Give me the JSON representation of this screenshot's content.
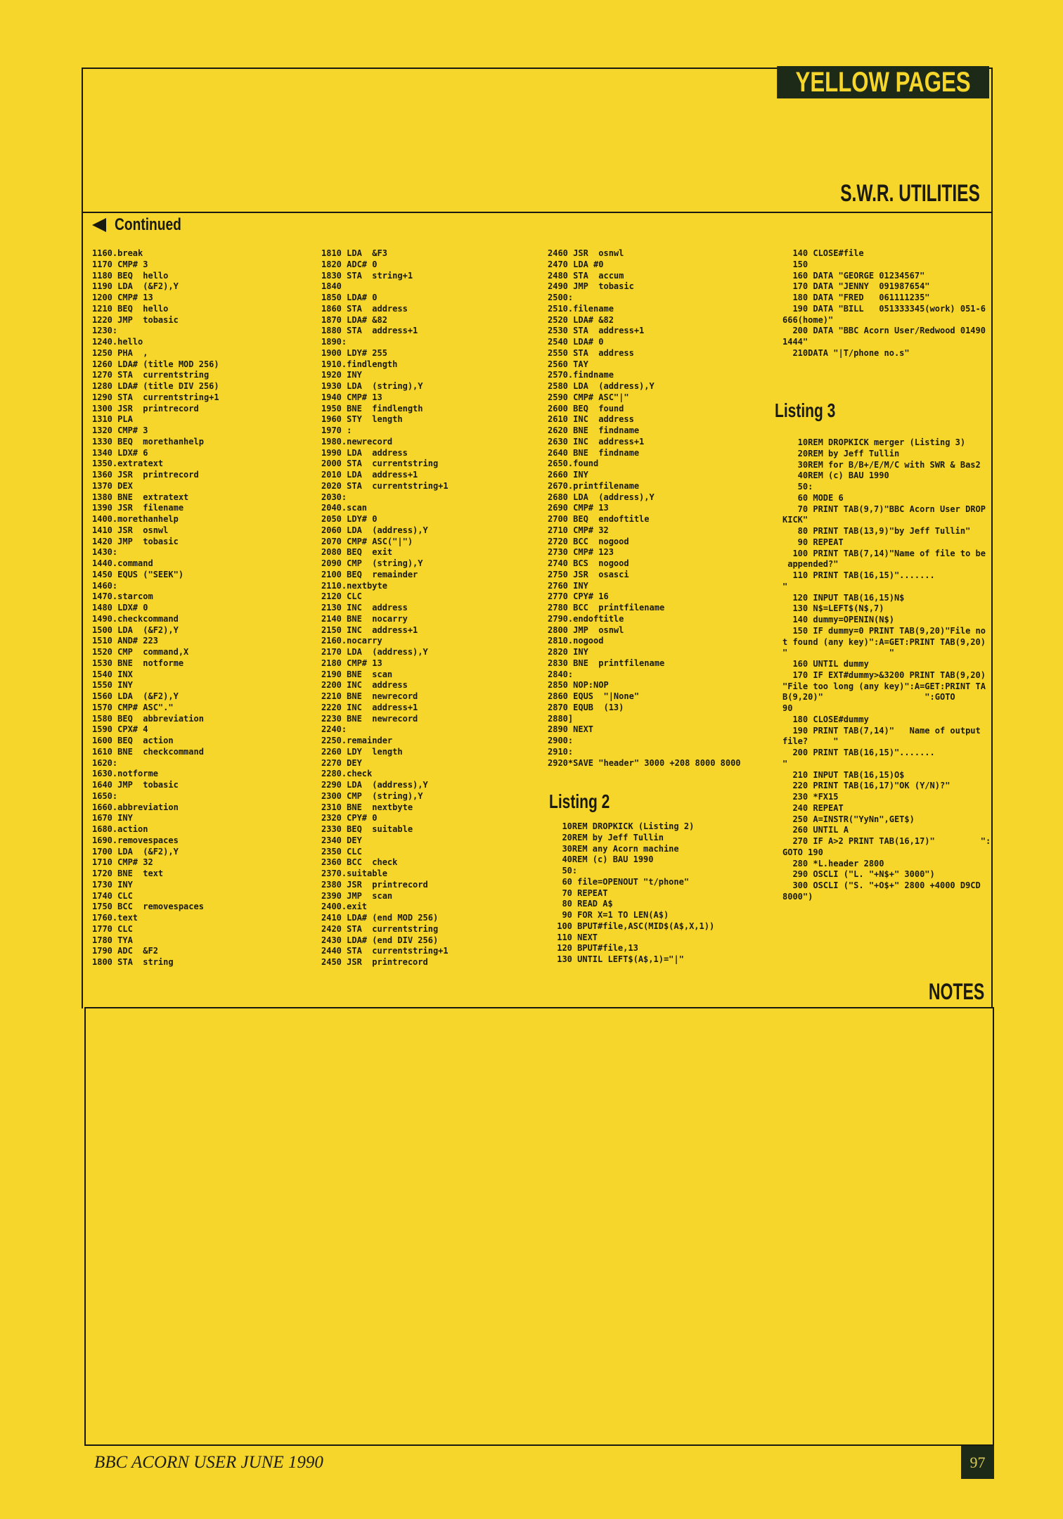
{
  "header": {
    "banner": "YELLOW PAGES",
    "section": "S.W.R. UTILITIES"
  },
  "continued": {
    "icon": "left-arrow-icon",
    "label": "Continued"
  },
  "listing1": {
    "col1": [
      "1160.break",
      "1170 CMP# 3",
      "1180 BEQ  hello",
      "1190 LDA  (&F2),Y",
      "1200 CMP# 13",
      "1210 BEQ  hello",
      "1220 JMP  tobasic",
      "1230:",
      "1240.hello",
      "1250 PHA  ,",
      "1260 LDA# (title MOD 256)",
      "1270 STA  currentstring",
      "1280 LDA# (title DIV 256)",
      "1290 STA  currentstring+1",
      "1300 JSR  printrecord",
      "1310 PLA",
      "1320 CMP# 3",
      "1330 BEQ  morethanhelp",
      "1340 LDX# 6",
      "1350.extratext",
      "1360 JSR  printrecord",
      "1370 DEX",
      "1380 BNE  extratext",
      "1390 JSR  filename",
      "1400.morethanhelp",
      "1410 JSR  osnwl",
      "1420 JMP  tobasic",
      "1430:",
      "1440.command",
      "1450 EQUS (\"SEEK\")",
      "1460:",
      "1470.starcom",
      "1480 LDX# 0",
      "1490.checkcommand",
      "1500 LDA  (&F2),Y",
      "1510 AND# 223",
      "1520 CMP  command,X",
      "1530 BNE  notforme",
      "1540 INX",
      "1550 INY",
      "1560 LDA  (&F2),Y",
      "1570 CMP# ASC\".\"",
      "1580 BEQ  abbreviation",
      "1590 CPX# 4",
      "1600 BEQ  action",
      "1610 BNE  checkcommand",
      "1620:",
      "1630.notforme",
      "1640 JMP  tobasic",
      "1650:",
      "1660.abbreviation",
      "1670 INY",
      "1680.action",
      "1690.removespaces",
      "1700 LDA  (&F2),Y",
      "1710 CMP# 32",
      "1720 BNE  text",
      "1730 INY",
      "1740 CLC",
      "1750 BCC  removespaces",
      "1760.text",
      "1770 CLC",
      "1780 TYA",
      "1790 ADC  &F2",
      "1800 STA  string"
    ],
    "col2": [
      "1810 LDA  &F3",
      "1820 ADC# 0",
      "1830 STA  string+1",
      "1840",
      "1850 LDA# 0",
      "1860 STA  address",
      "1870 LDA# &82",
      "1880 STA  address+1",
      "1890:",
      "1900 LDY# 255",
      "1910.findlength",
      "1920 INY",
      "1930 LDA  (string),Y",
      "1940 CMP# 13",
      "1950 BNE  findlength",
      "1960 STY  length",
      "1970 :",
      "1980.newrecord",
      "1990 LDA  address",
      "2000 STA  currentstring",
      "2010 LDA  address+1",
      "2020 STA  currentstring+1",
      "2030:",
      "2040.scan",
      "2050 LDY# 0",
      "2060 LDA  (address),Y",
      "2070 CMP# ASC(\"|\")",
      "2080 BEQ  exit",
      "2090 CMP  (string),Y",
      "2100 BEQ  remainder",
      "2110.nextbyte",
      "2120 CLC",
      "2130 INC  address",
      "2140 BNE  nocarry",
      "2150 INC  address+1",
      "2160.nocarry",
      "2170 LDA  (address),Y",
      "2180 CMP# 13",
      "2190 BNE  scan",
      "2200 INC  address",
      "2210 BNE  newrecord",
      "2220 INC  address+1",
      "2230 BNE  newrecord",
      "2240:",
      "2250.remainder",
      "2260 LDY  length",
      "2270 DEY",
      "2280.check",
      "2290 LDA  (address),Y",
      "2300 CMP  (string),Y",
      "2310 BNE  nextbyte",
      "2320 CPY# 0",
      "2330 BEQ  suitable",
      "2340 DEY",
      "2350 CLC",
      "2360 BCC  check",
      "2370.suitable",
      "2380 JSR  printrecord",
      "2390 JMP  scan",
      "2400.exit",
      "2410 LDA# (end MOD 256)",
      "2420 STA  currentstring",
      "2430 LDA# (end DIV 256)",
      "2440 STA  currentstring+1",
      "2450 JSR  printrecord"
    ],
    "col3": [
      "2460 JSR  osnwl",
      "2470 LDA #0",
      "2480 STA  accum",
      "2490 JMP  tobasic",
      "2500:",
      "2510.filename",
      "2520 LDA# &82",
      "2530 STA  address+1",
      "2540 LDA# 0",
      "2550 STA  address",
      "2560 TAY",
      "2570.findname",
      "2580 LDA  (address),Y",
      "2590 CMP# ASC\"|\"",
      "2600 BEQ  found",
      "2610 INC  address",
      "2620 BNE  findname",
      "2630 INC  address+1",
      "2640 BNE  findname",
      "2650.found",
      "2660 INY",
      "2670.printfilename",
      "2680 LDA  (address),Y",
      "2690 CMP# 13",
      "2700 BEQ  endoftitle",
      "2710 CMP# 32",
      "2720 BCC  nogood",
      "2730 CMP# 123",
      "2740 BCS  nogood",
      "2750 JSR  osasci",
      "2760 INY",
      "2770 CPY# 16",
      "2780 BCC  printfilename",
      "2790.endoftitle",
      "2800 JMP  osnwl",
      "2810.nogood",
      "2820 INY",
      "2830 BNE  printfilename",
      "2840:",
      "2850 NOP:NOP",
      "2860 EQUS  \"|None\"",
      "2870 EQUB  (13)",
      "2880]",
      "2890 NEXT",
      "2900:",
      "2910:",
      "2920*SAVE \"header\" 3000 +208 8000 8000"
    ]
  },
  "listing2": {
    "title": "Listing 2",
    "lines": [
      "  10REM DROPKICK (Listing 2)",
      "  20REM by Jeff Tullin",
      "  30REM any Acorn machine",
      "  40REM (c) BAU 1990",
      "  50:",
      "  60 file=OPENOUT \"t/phone\"",
      "  70 REPEAT",
      "  80 READ A$",
      "  90 FOR X=1 TO LEN(A$)",
      " 100 BPUT#file,ASC(MID$(A$,X,1))",
      " 110 NEXT",
      " 120 BPUT#file,13",
      " 130 UNTIL LEFT$(A$,1)=\"|\""
    ],
    "continued_lines": [
      "  140 CLOSE#file",
      "  150",
      "  160 DATA \"GEORGE 01234567\"",
      "  170 DATA \"JENNY  091987654\"",
      "  180 DATA \"FRED   061111235\"",
      "  190 DATA \"BILL   051333345(work) 051-6",
      "666(home)\"",
      "  200 DATA \"BBC Acorn User/Redwood 01490",
      "1444\"",
      "  210DATA \"|T/phone no.s\""
    ]
  },
  "listing3": {
    "title": "Listing 3",
    "lines": [
      "   10REM DROPKICK merger (Listing 3)",
      "   20REM by Jeff Tullin",
      "   30REM for B/B+/E/M/C with SWR & Bas2",
      "   40REM (c) BAU 1990",
      "   50:",
      "   60 MODE 6",
      "   70 PRINT TAB(9,7)\"BBC Acorn User DROP",
      "KICK\"",
      "   80 PRINT TAB(13,9)\"by Jeff Tullin\"",
      "   90 REPEAT",
      "  100 PRINT TAB(7,14)\"Name of file to be",
      " appended?\"",
      "  110 PRINT TAB(16,15)\".......",
      "\"",
      "  120 INPUT TAB(16,15)N$",
      "  130 N$=LEFT$(N$,7)",
      "  140 dummy=OPENIN(N$)",
      "  150 IF dummy=0 PRINT TAB(9,20)\"File no",
      "t found (any key)\":A=GET:PRINT TAB(9,20)",
      "\"                    \"",
      "  160 UNTIL dummy",
      "  170 IF EXT#dummy>&3200 PRINT TAB(9,20)",
      "\"File too long (any key)\":A=GET:PRINT TA",
      "B(9,20)\"                    \":GOTO",
      "90",
      "  180 CLOSE#dummy",
      "  190 PRINT TAB(7,14)\"   Name of output",
      "file?     \"",
      "  200 PRINT TAB(16,15)\".......",
      "\"",
      "  210 INPUT TAB(16,15)O$",
      "  220 PRINT TAB(16,17)\"OK (Y/N)?\"",
      "  230 *FX15",
      "  240 REPEAT",
      "  250 A=INSTR(\"YyNn\",GET$)",
      "  260 UNTIL A",
      "  270 IF A>2 PRINT TAB(16,17)\"         \":",
      "GOTO 190",
      "  280 *L.header 2800",
      "  290 OSCLI (\"L. \"+N$+\" 3000\")",
      "  300 OSCLI (\"S. \"+O$+\" 2800 +4000 D9CD",
      "8000\")"
    ]
  },
  "notes": {
    "title": "NOTES"
  },
  "footer": {
    "publication": "BBC ACORN USER JUNE 1990",
    "page_number": "97"
  },
  "colors": {
    "page": "#f6d62a",
    "ink": "#1a1a10",
    "banner": "#1c2a17"
  }
}
